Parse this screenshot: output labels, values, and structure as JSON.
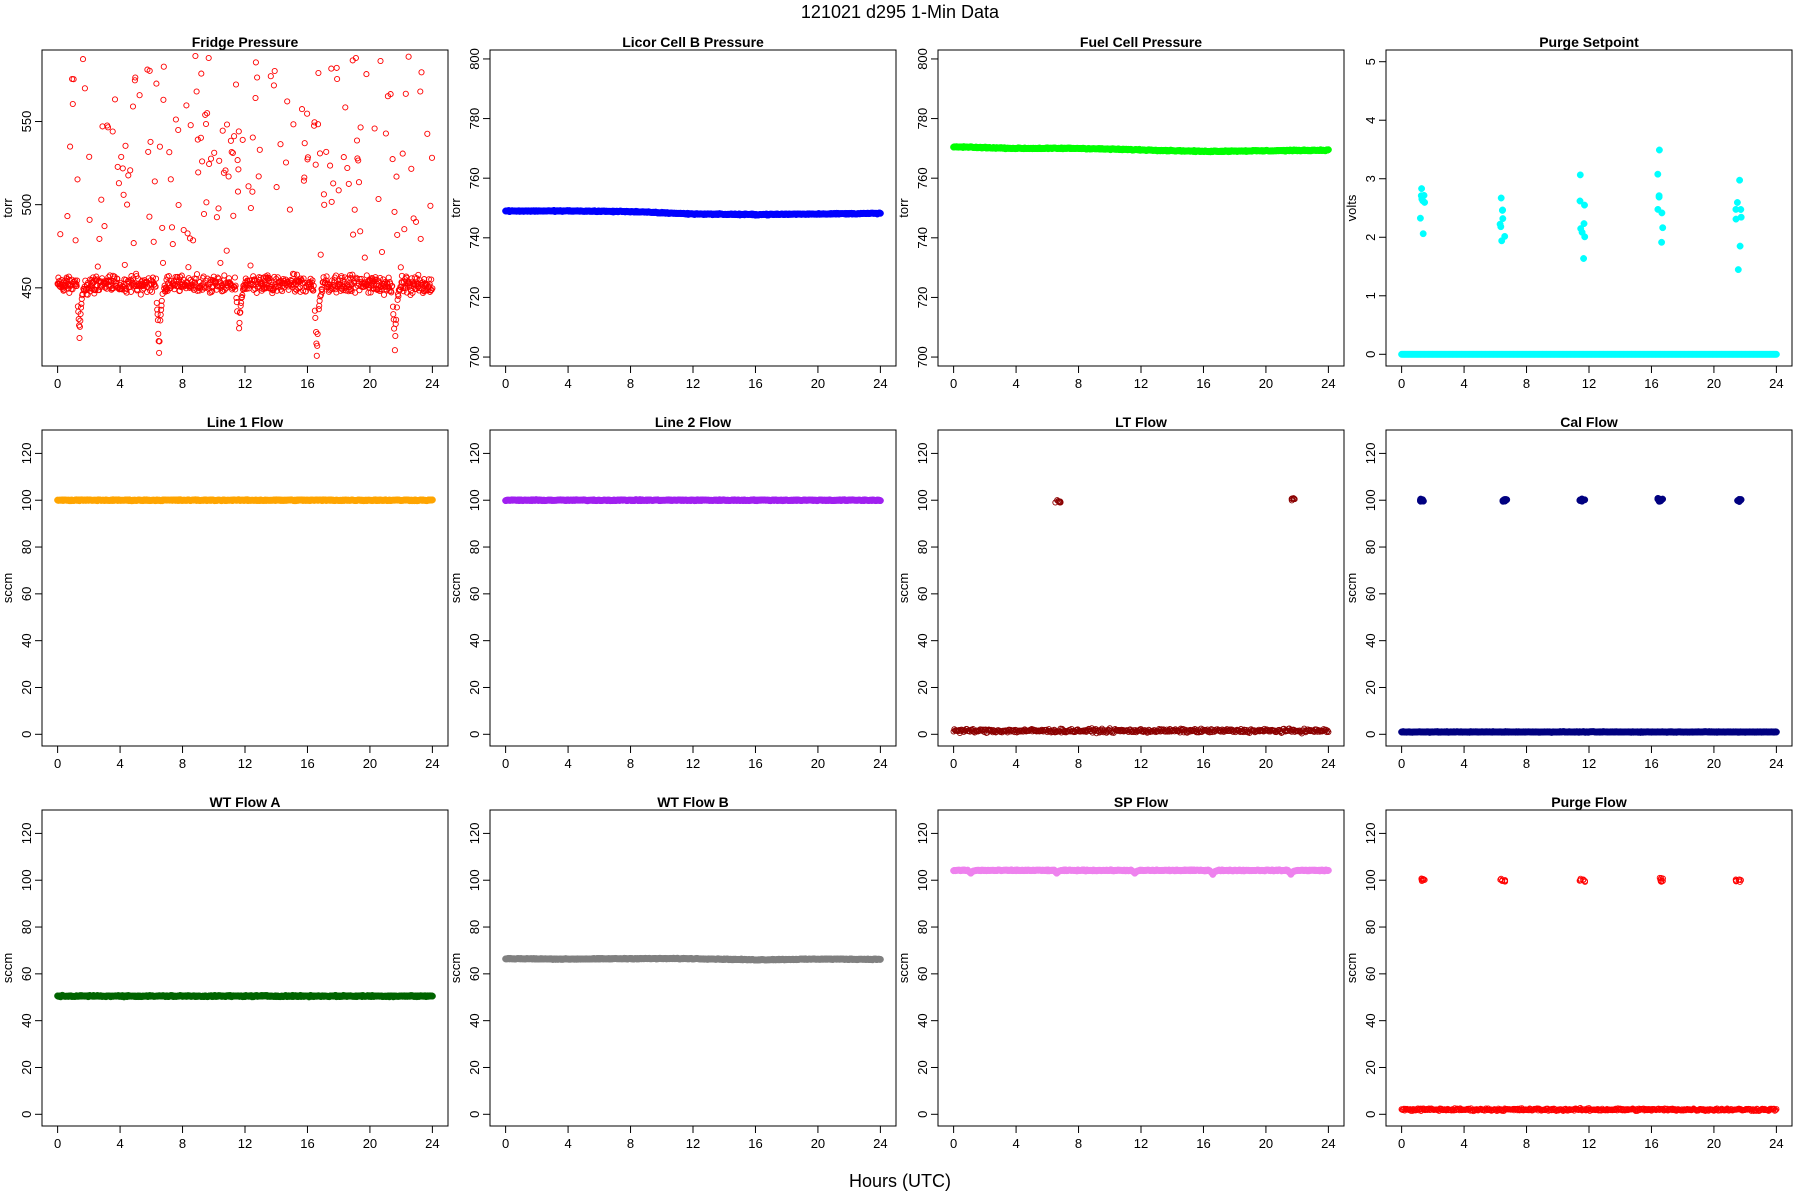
{
  "page": {
    "title": "121021    d295    1-Min Data",
    "xlabel": "Hours (UTC)"
  },
  "chart_data": [
    {
      "type": "scatter",
      "title": "Fridge Pressure",
      "ylabel": "torr",
      "xlim": [
        -1,
        25
      ],
      "ylim": [
        403,
        593
      ],
      "xticks": [
        0,
        4,
        8,
        12,
        16,
        20,
        24
      ],
      "yticks": [
        450,
        500,
        550
      ],
      "color": "#ff0000",
      "marker": "open",
      "series": [
        {
          "baseline": 452,
          "spread": 8,
          "scatter": {
            "fraction": 0.18,
            "min": 462,
            "max": 590
          },
          "dips": [
            [
              1.3,
              420
            ],
            [
              6.4,
              410
            ],
            [
              11.5,
              418
            ],
            [
              16.5,
              408
            ],
            [
              21.5,
              413
            ]
          ]
        }
      ]
    },
    {
      "type": "scatter",
      "title": "Licor Cell B Pressure",
      "ylabel": "torr",
      "xlim": [
        -1,
        25
      ],
      "ylim": [
        697,
        803
      ],
      "xticks": [
        0,
        4,
        8,
        12,
        16,
        20,
        24
      ],
      "yticks": [
        700,
        720,
        740,
        760,
        780,
        800
      ],
      "color": "#0000ff",
      "marker": "filled",
      "series": [
        {
          "x": [
            0,
            4,
            8,
            12,
            16,
            20,
            24
          ],
          "y": [
            749,
            749,
            748.8,
            748,
            747.8,
            748,
            748.2
          ]
        }
      ]
    },
    {
      "type": "scatter",
      "title": "Fuel Cell Pressure",
      "ylabel": "torr",
      "xlim": [
        -1,
        25
      ],
      "ylim": [
        697,
        803
      ],
      "xticks": [
        0,
        4,
        8,
        12,
        16,
        20,
        24
      ],
      "yticks": [
        700,
        720,
        740,
        760,
        780,
        800
      ],
      "color": "#00ff00",
      "marker": "filled",
      "series": [
        {
          "x": [
            0,
            4,
            8,
            12,
            16,
            20,
            24
          ],
          "y": [
            770.5,
            770,
            770,
            769.5,
            769,
            769.2,
            769.4
          ]
        }
      ]
    },
    {
      "type": "scatter",
      "title": "Purge Setpoint",
      "ylabel": "volts",
      "xlim": [
        -1,
        25
      ],
      "ylim": [
        -0.2,
        5.2
      ],
      "xticks": [
        0,
        4,
        8,
        12,
        16,
        20,
        24
      ],
      "yticks": [
        0,
        1,
        2,
        3,
        4,
        5
      ],
      "color": "#00ffff",
      "marker": "filled",
      "series": [
        {
          "baseline": 0,
          "spread": 0
        },
        {
          "clusters": [
            [
              1.3,
              2.33
            ],
            [
              6.4,
              2.38
            ],
            [
              11.5,
              2.33
            ],
            [
              16.5,
              2.42
            ],
            [
              21.5,
              2.35
            ]
          ]
        }
      ]
    },
    {
      "type": "scatter",
      "title": "Line 1 Flow",
      "ylabel": "sccm",
      "xlim": [
        -1,
        25
      ],
      "ylim": [
        -5,
        130
      ],
      "xticks": [
        0,
        4,
        8,
        12,
        16,
        20,
        24
      ],
      "yticks": [
        0,
        20,
        40,
        60,
        80,
        100,
        120
      ],
      "color": "#ffa500",
      "marker": "filled",
      "series": [
        {
          "baseline": 100,
          "spread": 0.3
        }
      ]
    },
    {
      "type": "scatter",
      "title": "Line 2 Flow",
      "ylabel": "sccm",
      "xlim": [
        -1,
        25
      ],
      "ylim": [
        -5,
        130
      ],
      "xticks": [
        0,
        4,
        8,
        12,
        16,
        20,
        24
      ],
      "yticks": [
        0,
        20,
        40,
        60,
        80,
        100,
        120
      ],
      "color": "#a020f0",
      "marker": "filled",
      "series": [
        {
          "baseline": 100,
          "spread": 0.3
        }
      ]
    },
    {
      "type": "scatter",
      "title": "LT Flow",
      "ylabel": "sccm",
      "xlim": [
        -1,
        25
      ],
      "ylim": [
        -5,
        130
      ],
      "xticks": [
        0,
        4,
        8,
        12,
        16,
        20,
        24
      ],
      "yticks": [
        0,
        20,
        40,
        60,
        80,
        100,
        120
      ],
      "color": "#8b0000",
      "marker": "open",
      "series": [
        {
          "baseline": 1.5,
          "spread": 1.2
        },
        {
          "clusters": [
            [
              6.6,
              99.5
            ],
            [
              21.6,
              100.5
            ]
          ]
        }
      ]
    },
    {
      "type": "scatter",
      "title": "Cal Flow",
      "ylabel": "sccm",
      "xlim": [
        -1,
        25
      ],
      "ylim": [
        -5,
        130
      ],
      "xticks": [
        0,
        4,
        8,
        12,
        16,
        20,
        24
      ],
      "yticks": [
        0,
        20,
        40,
        60,
        80,
        100,
        120
      ],
      "color": "#000080",
      "marker": "filled",
      "series": [
        {
          "baseline": 1,
          "spread": 0.2
        },
        {
          "clusters": [
            [
              1.3,
              100
            ],
            [
              6.5,
              100
            ],
            [
              11.5,
              100
            ],
            [
              16.5,
              100
            ],
            [
              21.5,
              100
            ]
          ]
        }
      ]
    },
    {
      "type": "scatter",
      "title": "WT Flow A",
      "ylabel": "sccm",
      "xlim": [
        -1,
        25
      ],
      "ylim": [
        -5,
        130
      ],
      "xticks": [
        0,
        4,
        8,
        12,
        16,
        20,
        24
      ],
      "yticks": [
        0,
        20,
        40,
        60,
        80,
        100,
        120
      ],
      "color": "#006400",
      "marker": "filled",
      "series": [
        {
          "baseline": 50.5,
          "spread": 0.4
        }
      ]
    },
    {
      "type": "scatter",
      "title": "WT Flow B",
      "ylabel": "sccm",
      "xlim": [
        -1,
        25
      ],
      "ylim": [
        -5,
        130
      ],
      "xticks": [
        0,
        4,
        8,
        12,
        16,
        20,
        24
      ],
      "yticks": [
        0,
        20,
        40,
        60,
        80,
        100,
        120
      ],
      "color": "#808080",
      "marker": "filled",
      "series": [
        {
          "x": [
            0,
            4,
            8,
            12,
            16,
            20,
            24
          ],
          "y": [
            66.5,
            66.3,
            66.5,
            66.5,
            66,
            66.3,
            66.2
          ]
        }
      ]
    },
    {
      "type": "scatter",
      "title": "SP Flow",
      "ylabel": "sccm",
      "xlim": [
        -1,
        25
      ],
      "ylim": [
        -5,
        130
      ],
      "xticks": [
        0,
        4,
        8,
        12,
        16,
        20,
        24
      ],
      "yticks": [
        0,
        20,
        40,
        60,
        80,
        100,
        120
      ],
      "color": "#ee82ee",
      "marker": "filled",
      "series": [
        {
          "baseline": 104.2,
          "spread": 0.3,
          "dips": [
            [
              1,
              103
            ],
            [
              6.5,
              103
            ],
            [
              11.5,
              103
            ],
            [
              16.5,
              102.5
            ],
            [
              21.5,
              102.5
            ]
          ]
        }
      ]
    },
    {
      "type": "scatter",
      "title": "Purge Flow",
      "ylabel": "sccm",
      "xlim": [
        -1,
        25
      ],
      "ylim": [
        -5,
        130
      ],
      "xticks": [
        0,
        4,
        8,
        12,
        16,
        20,
        24
      ],
      "yticks": [
        0,
        20,
        40,
        60,
        80,
        100,
        120
      ],
      "color": "#ff0000",
      "marker": "open",
      "series": [
        {
          "baseline": 2,
          "spread": 0.8
        },
        {
          "clusters": [
            [
              1.3,
              100
            ],
            [
              6.4,
              100
            ],
            [
              11.5,
              100
            ],
            [
              16.5,
              100
            ],
            [
              21.5,
              100
            ]
          ]
        }
      ]
    }
  ]
}
